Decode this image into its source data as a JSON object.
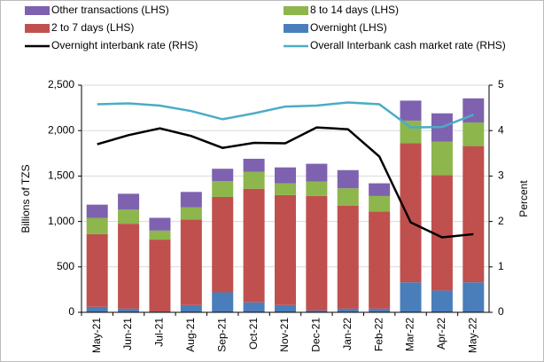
{
  "chart_data": {
    "type": "bar",
    "y_label": "Billions of TZS",
    "y2_label": "Percent",
    "categories": [
      "May-21",
      "Jun-21",
      "Jul-21",
      "Aug-21",
      "Sep-21",
      "Oct-21",
      "Nov-21",
      "Dec-21",
      "Jan-22",
      "Feb-22",
      "Mar-22",
      "Apr-22",
      "May-22"
    ],
    "series": [
      {
        "name": "Other transactions (LHS)",
        "color": "#7e62b0",
        "values": [
          145,
          175,
          140,
          170,
          135,
          145,
          175,
          195,
          200,
          140,
          220,
          310,
          265
        ]
      },
      {
        "name": "8 to 14 days (LHS)",
        "color": "#8db64c",
        "values": [
          180,
          155,
          100,
          135,
          175,
          185,
          130,
          160,
          190,
          170,
          250,
          370,
          260
        ]
      },
      {
        "name": "2 to 7 days (LHS)",
        "color": "#c0504d",
        "values": [
          800,
          935,
          790,
          940,
          1050,
          1250,
          1210,
          1260,
          1135,
          1070,
          1530,
          1270,
          1500
        ]
      },
      {
        "name": "Overnight (LHS)",
        "color": "#4a7ebb",
        "values": [
          60,
          40,
          10,
          80,
          220,
          110,
          80,
          20,
          40,
          40,
          330,
          240,
          330
        ]
      },
      {
        "name": "Overnight interbank rate (RHS)",
        "color": "#000000",
        "type": "line",
        "axis": "y2",
        "values": [
          3.7,
          3.9,
          4.05,
          3.88,
          3.62,
          3.73,
          3.72,
          4.07,
          4.03,
          3.43,
          1.98,
          1.65,
          1.72
        ]
      },
      {
        "name": "Overall Interbank cash market rate (RHS)",
        "color": "#4bacc6",
        "type": "line",
        "axis": "y2",
        "values": [
          4.58,
          4.6,
          4.55,
          4.43,
          4.25,
          4.38,
          4.53,
          4.55,
          4.62,
          4.58,
          4.07,
          4.08,
          4.35
        ]
      }
    ],
    "ylim": [
      0,
      2500
    ],
    "yticks": [
      0,
      500,
      {
        "value": 1000,
        "label": "1,000"
      },
      {
        "value": 1500,
        "label": "1,500"
      },
      {
        "value": 2000,
        "label": "2,000"
      },
      {
        "value": 2500,
        "label": "2,500"
      }
    ],
    "y2lim": [
      0,
      5
    ],
    "y2ticks": [
      0,
      1,
      2,
      3,
      4,
      5
    ],
    "grid": true
  }
}
